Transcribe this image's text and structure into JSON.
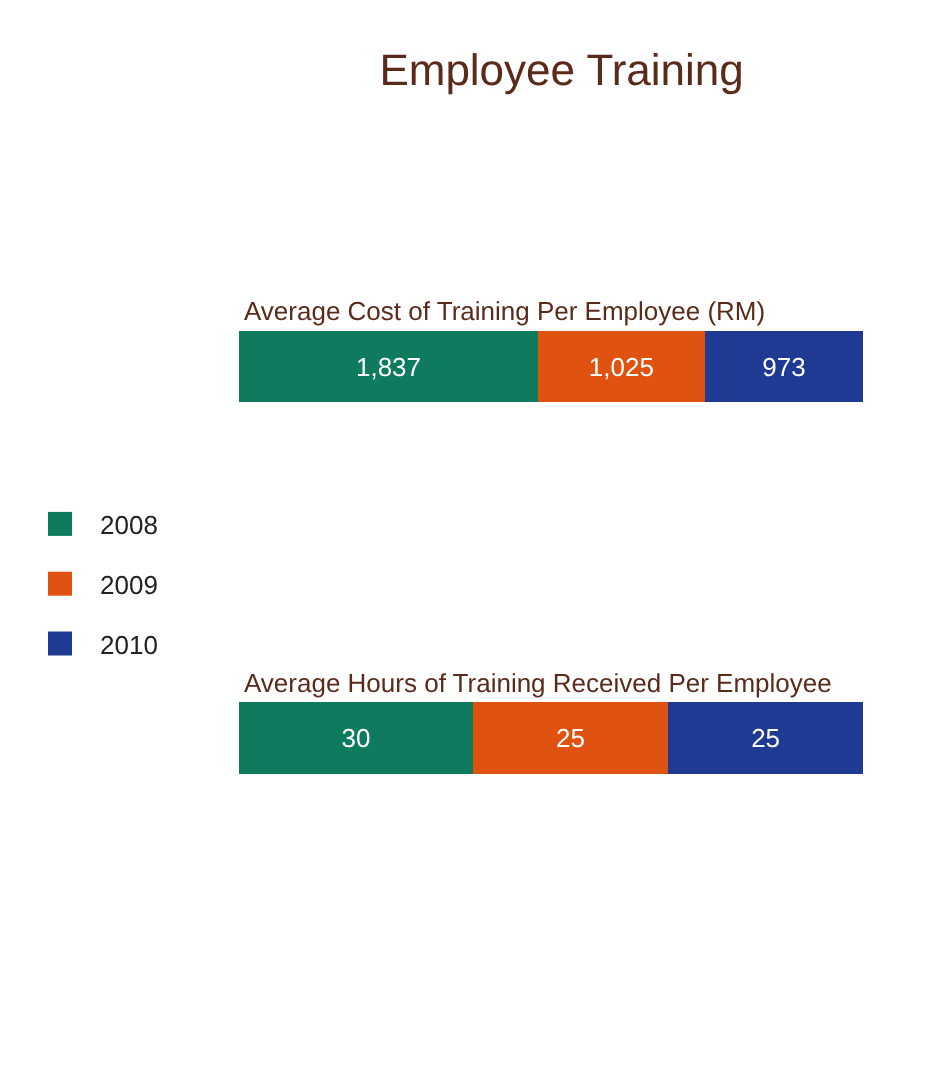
{
  "chart_data": [
    {
      "type": "bar",
      "title": "Employee Training",
      "orientation": "horizontal",
      "stacked": true,
      "legend": "left",
      "categories": [
        "Average Cost of Training Per Employee (RM)"
      ],
      "series": [
        {
          "name": "2008",
          "color": "#0e7a5e",
          "values": [
            1837
          ],
          "value_labels": [
            "1,837"
          ]
        },
        {
          "name": "2009",
          "color": "#e0520f",
          "values": [
            1025
          ],
          "value_labels": [
            "1,025"
          ]
        },
        {
          "name": "2010",
          "color": "#1f3a93",
          "values": [
            973
          ],
          "value_labels": [
            "973"
          ]
        }
      ]
    },
    {
      "type": "bar",
      "orientation": "horizontal",
      "stacked": true,
      "legend": "left",
      "categories": [
        "Average Hours of Training Received Per Employee"
      ],
      "series": [
        {
          "name": "2008",
          "color": "#0e7a5e",
          "values": [
            30
          ],
          "value_labels": [
            "30"
          ]
        },
        {
          "name": "2009",
          "color": "#e0520f",
          "values": [
            25
          ],
          "value_labels": [
            "25"
          ]
        },
        {
          "name": "2010",
          "color": "#1f3a93",
          "values": [
            25
          ],
          "value_labels": [
            "25"
          ]
        }
      ]
    }
  ]
}
